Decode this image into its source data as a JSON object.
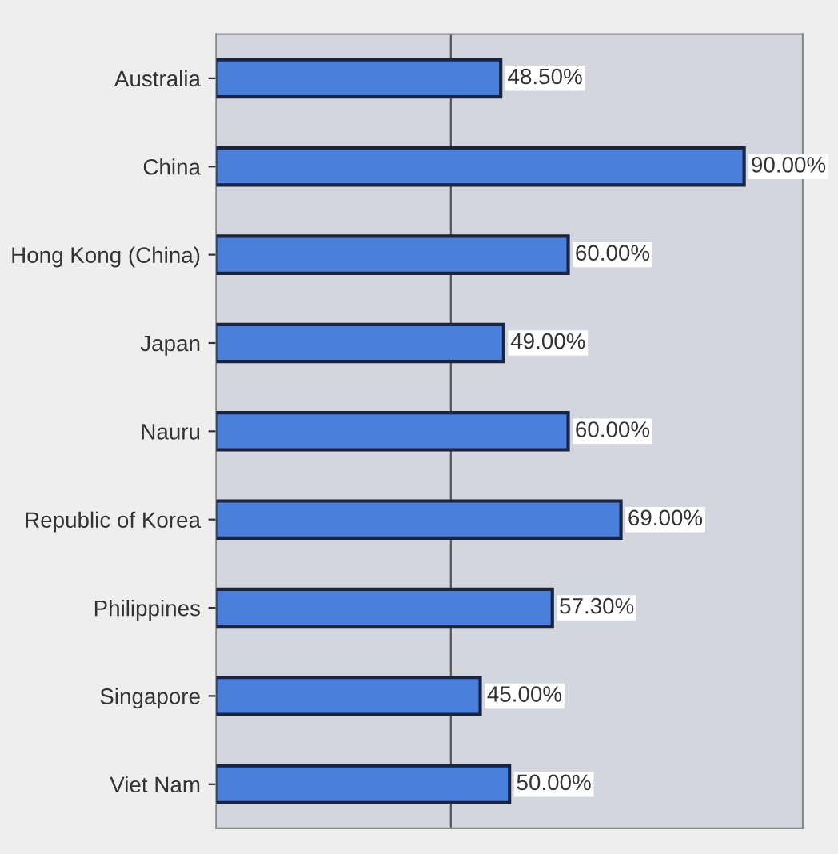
{
  "chart_data": {
    "type": "bar",
    "orientation": "horizontal",
    "categories": [
      "Australia",
      "China",
      "Hong Kong (China)",
      "Japan",
      "Nauru",
      "Republic of Korea",
      "Philippines",
      "Singapore",
      "Viet Nam"
    ],
    "values": [
      48.5,
      90,
      60,
      49,
      60,
      69,
      57.3,
      45,
      50
    ],
    "value_labels": [
      "48.50%",
      "90.00%",
      "60.00%",
      "49.00%",
      "60.00%",
      "69.00%",
      "57.30%",
      "45.00%",
      "50.00%"
    ],
    "color": "#4a7fdc",
    "xlim": [
      0,
      100
    ],
    "ref_lines": [
      {
        "axis": "x",
        "value": 40,
        "color": "#555555"
      }
    ],
    "tick_labels": "y"
  }
}
